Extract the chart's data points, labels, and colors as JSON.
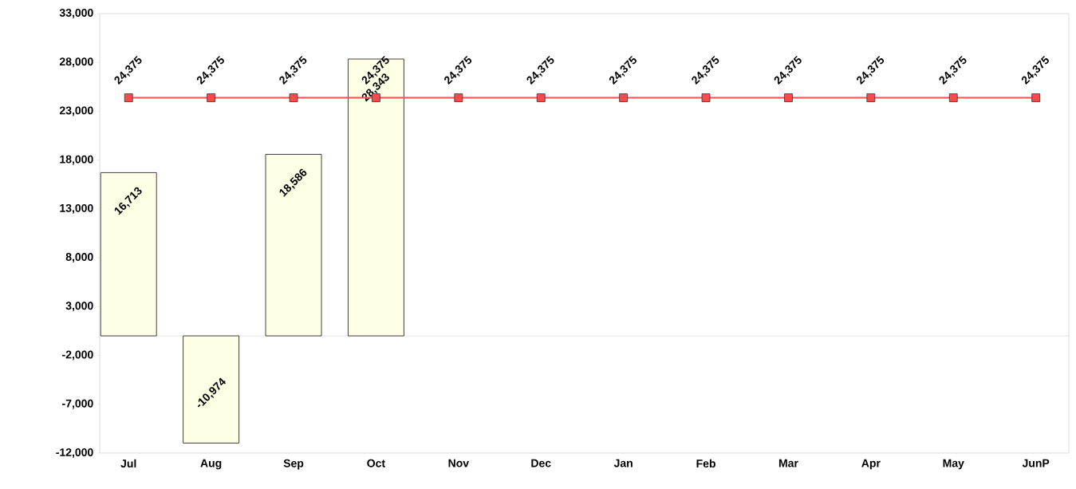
{
  "chart_data": {
    "type": "bar",
    "categories": [
      "Jul",
      "Aug",
      "Sep",
      "Oct",
      "Nov",
      "Dec",
      "Jan",
      "Feb",
      "Mar",
      "Apr",
      "May",
      "JunP"
    ],
    "series": [
      {
        "color": "#ffffe6",
        "values": [
          16713,
          -10974,
          18586,
          28343,
          null,
          null,
          null,
          null,
          null,
          null,
          null,
          null
        ],
        "value_labels": [
          "16,713",
          "-10,974",
          "18,586",
          "28,343",
          null,
          null,
          null,
          null,
          null,
          null,
          null,
          null
        ]
      },
      {
        "type": "line",
        "color": "#ff4d4d",
        "marker": "square",
        "values": [
          24375,
          24375,
          24375,
          24375,
          24375,
          24375,
          24375,
          24375,
          24375,
          24375,
          24375,
          24375
        ],
        "value_labels": [
          "24,375",
          "24,375",
          "24,375",
          "24,375",
          "24,375",
          "24,375",
          "24,375",
          "24,375",
          "24,375",
          "24,375",
          "24,375",
          "24,375"
        ]
      }
    ],
    "ylim": [
      -12000,
      33000
    ],
    "yticks": [
      {
        "value": -12000,
        "label": "-12,000"
      },
      {
        "value": -7000,
        "label": "-7,000"
      },
      {
        "value": -2000,
        "label": "-2,000"
      },
      {
        "value": 3000,
        "label": "3,000"
      },
      {
        "value": 8000,
        "label": "8,000"
      },
      {
        "value": 13000,
        "label": "13,000"
      },
      {
        "value": 18000,
        "label": "18,000"
      },
      {
        "value": 23000,
        "label": "23,000"
      },
      {
        "value": 28000,
        "label": "28,000"
      },
      {
        "value": 33000,
        "label": "33,000"
      }
    ]
  }
}
